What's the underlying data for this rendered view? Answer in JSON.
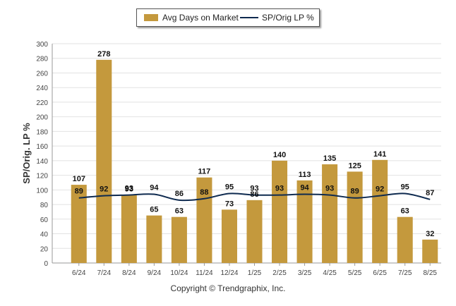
{
  "chart_data": {
    "type": "bar",
    "ylabel": "SP/Orig. LP %",
    "ylim": [
      0,
      300
    ],
    "yticks": [
      0,
      20,
      40,
      60,
      80,
      100,
      120,
      140,
      160,
      180,
      200,
      220,
      240,
      260,
      280,
      300
    ],
    "grid": true,
    "legend_position": "top-center",
    "categories": [
      "6/24",
      "7/24",
      "8/24",
      "9/24",
      "10/24",
      "11/24",
      "12/24",
      "1/25",
      "2/25",
      "3/25",
      "4/25",
      "5/25",
      "6/25",
      "7/25",
      "8/25"
    ],
    "series": [
      {
        "name": "Avg Days on Market",
        "type": "bar",
        "color": "#c4993d",
        "values": [
          107,
          278,
          93,
          65,
          63,
          117,
          73,
          86,
          140,
          113,
          135,
          125,
          141,
          63,
          32
        ]
      },
      {
        "name": "SP/Orig LP %",
        "type": "line",
        "color": "#0e2a4f",
        "values": [
          89,
          92,
          93,
          94,
          86,
          88,
          95,
          93,
          93,
          94,
          93,
          89,
          92,
          95,
          87
        ]
      }
    ]
  },
  "legend": {
    "bar_label": "Avg Days on Market",
    "line_label": "SP/Orig LP %"
  },
  "footer": {
    "copyright": "Copyright © Trendgraphix, Inc."
  }
}
